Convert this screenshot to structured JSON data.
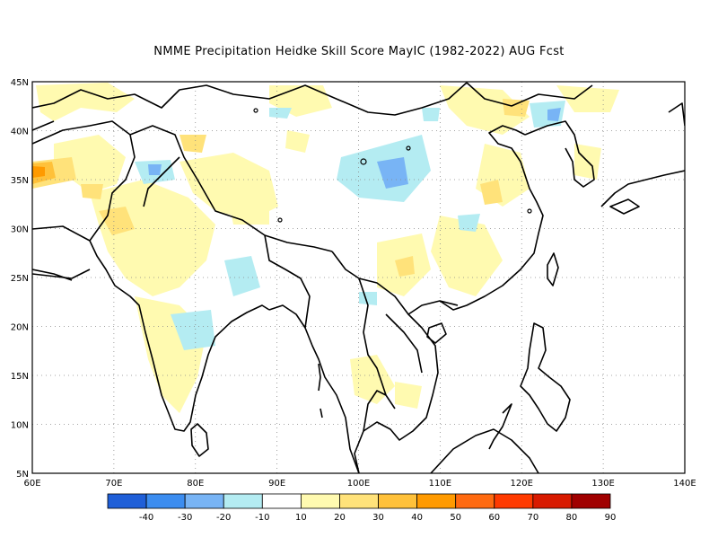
{
  "title": "NMME  Precipitation Heidke Skill Score MayIC (1982-2022) AUG Fcst",
  "map": {
    "lon_range": [
      60,
      140
    ],
    "lat_range": [
      5,
      45
    ],
    "lat_ticks": [
      "5N",
      "10N",
      "15N",
      "20N",
      "25N",
      "30N",
      "35N",
      "40N",
      "45N"
    ],
    "lon_ticks": [
      "60E",
      "70E",
      "80E",
      "90E",
      "100E",
      "110E",
      "120E",
      "130E",
      "140E"
    ],
    "grid_lines": "dotted"
  },
  "colorbar": {
    "colors": [
      "#1f5fd8",
      "#3c8df0",
      "#78b4f5",
      "#b4ecf2",
      "#ffffff",
      "#fffab0",
      "#ffe27a",
      "#ffc13a",
      "#ff9a00",
      "#ff6a10",
      "#ff3a00",
      "#d81a00",
      "#a00000"
    ],
    "labels": [
      "-40",
      "-30",
      "-20",
      "-10",
      "10",
      "20",
      "30",
      "40",
      "50",
      "60",
      "70",
      "80",
      "90"
    ]
  }
}
